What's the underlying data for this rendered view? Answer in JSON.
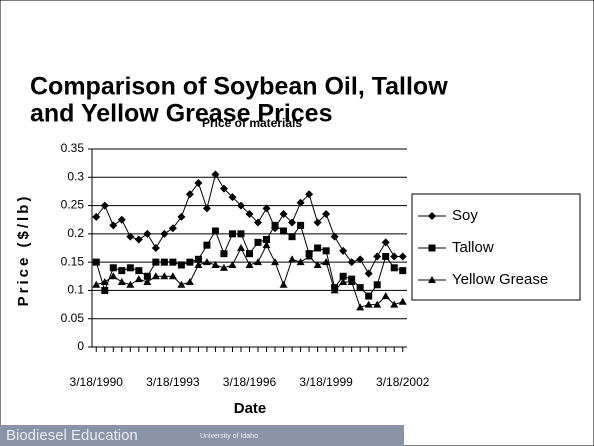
{
  "chart_data": {
    "type": "line",
    "title_lines": [
      "Comparison of Soybean Oil, Tallow",
      "and Yellow Grease Prices"
    ],
    "subtitle": "Price of materials",
    "y_label": "Price ($/lb)",
    "x_label": "Date",
    "categories": [
      "3/18/1990",
      null,
      null,
      null,
      null,
      null,
      null,
      null,
      null,
      "3/18/1993",
      null,
      null,
      null,
      null,
      null,
      null,
      null,
      null,
      "3/18/1996",
      null,
      null,
      null,
      null,
      null,
      null,
      null,
      null,
      "3/18/1999",
      null,
      null,
      null,
      null,
      null,
      null,
      null,
      null,
      "3/18/2002"
    ],
    "series": [
      {
        "name": "Soy",
        "color": "#000000",
        "marker": "diamond",
        "values": [
          0.23,
          0.25,
          0.215,
          0.225,
          0.195,
          0.19,
          0.2,
          0.175,
          0.2,
          0.21,
          0.23,
          0.27,
          0.29,
          0.245,
          0.305,
          0.28,
          0.265,
          0.25,
          0.235,
          0.22,
          0.245,
          0.21,
          0.235,
          0.22,
          0.255,
          0.27,
          0.22,
          0.235,
          0.195,
          0.17,
          0.15,
          0.155,
          0.13,
          0.16,
          0.185,
          0.16,
          0.16
        ]
      },
      {
        "name": "Tallow",
        "color": "#000000",
        "marker": "square",
        "values": [
          0.15,
          0.1,
          0.14,
          0.135,
          0.14,
          0.135,
          0.125,
          0.15,
          0.15,
          0.15,
          0.145,
          0.15,
          0.155,
          0.18,
          0.205,
          0.165,
          0.2,
          0.2,
          0.165,
          0.185,
          0.19,
          0.215,
          0.205,
          0.195,
          0.215,
          0.165,
          0.175,
          0.17,
          0.105,
          0.125,
          0.12,
          0.105,
          0.09,
          0.11,
          0.16,
          0.14,
          0.135
        ]
      },
      {
        "name": "Yellow Grease",
        "color": "#000000",
        "marker": "triangle",
        "values": [
          0.11,
          0.115,
          0.125,
          0.115,
          0.11,
          0.12,
          0.115,
          0.125,
          0.125,
          0.125,
          0.11,
          0.115,
          0.145,
          0.15,
          0.145,
          0.14,
          0.145,
          0.175,
          0.145,
          0.15,
          0.18,
          0.15,
          0.11,
          0.155,
          0.15,
          0.16,
          0.145,
          0.15,
          0.1,
          0.115,
          0.115,
          0.07,
          0.075,
          0.075,
          0.09,
          0.075,
          0.08
        ]
      }
    ],
    "ylim": [
      0,
      0.35
    ],
    "yticks": [
      0,
      0.05,
      0.1,
      0.15,
      0.2,
      0.25,
      0.3,
      0.35
    ],
    "grid": true,
    "legend": "right"
  },
  "footer": {
    "left": "Biodiesel Education",
    "right": "University of Idaho"
  }
}
